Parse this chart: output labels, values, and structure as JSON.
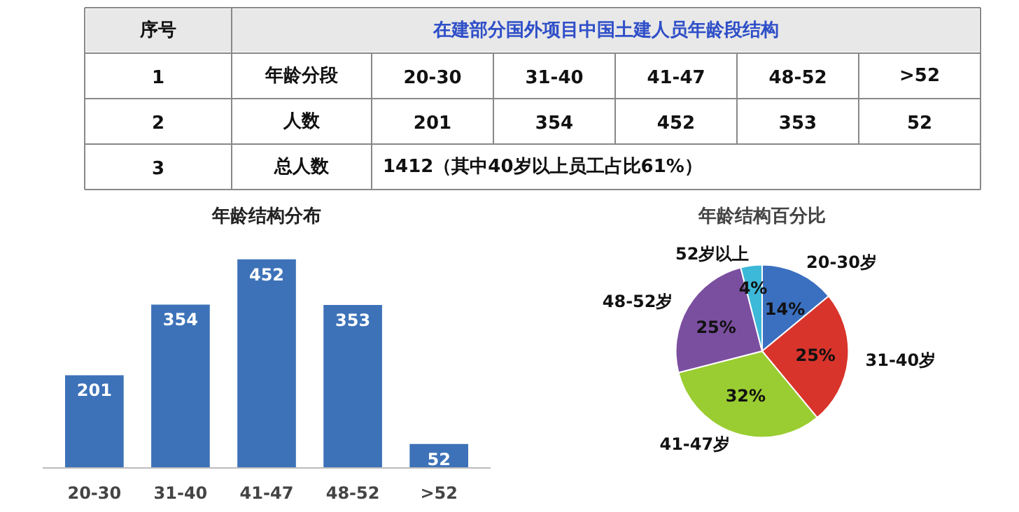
{
  "chart_data": [
    {
      "type": "other",
      "title": "在建部分国外项目中国土建人员年龄段结构",
      "annotations": [
        "序号",
        "1",
        "年龄分段",
        "20-30",
        "31-40",
        "41-47",
        "48-52",
        ">52",
        "2",
        "人数",
        "201",
        "354",
        "452",
        "353",
        "52",
        "3",
        "总人数",
        "1412（其中40岁以上员工占比61%）"
      ]
    },
    {
      "type": "bar",
      "title": "年龄结构分布",
      "categories": [
        "20-30",
        "31-40",
        "41-47",
        "48-52",
        ">52"
      ],
      "values": [
        201,
        354,
        452,
        353,
        52
      ],
      "color": "#3d72b8",
      "data_labels": true,
      "grid": false
    },
    {
      "type": "pie",
      "title": "年龄结构百分比",
      "categories": [
        "20-30岁",
        "31-40岁",
        "41-47岁",
        "48-52岁",
        "52岁以上"
      ],
      "values": [
        14,
        25,
        32,
        25,
        4
      ],
      "value_labels": [
        "14%",
        "25%",
        "32%",
        "25%",
        "4%"
      ],
      "colors": [
        "#3b6fc0",
        "#d9342b",
        "#9acd32",
        "#7b4fa0",
        "#3cb8d8"
      ]
    }
  ]
}
